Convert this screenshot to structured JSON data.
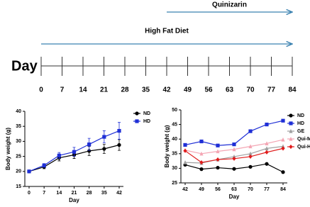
{
  "timeline": {
    "label": "Day",
    "days": [
      0,
      7,
      14,
      21,
      28,
      35,
      42,
      49,
      56,
      63,
      70,
      77,
      84
    ],
    "arrows": [
      {
        "label": "Quinizarin",
        "start": 42,
        "end": 84
      },
      {
        "label": "High Fat Diet",
        "start": 0,
        "end": 84
      }
    ]
  },
  "chart_data": [
    {
      "type": "line",
      "xlabel": "Day",
      "ylabel": "Body weight (g)",
      "x": [
        0,
        7,
        14,
        21,
        28,
        35,
        42
      ],
      "xlim": [
        0,
        42
      ],
      "xticks": [
        0,
        7,
        14,
        21,
        28,
        35,
        42
      ],
      "ylim": [
        15,
        40
      ],
      "yticks": [
        15,
        20,
        25,
        30,
        35,
        40
      ],
      "legend": "upper right",
      "series": [
        {
          "name": "ND",
          "color": "#000000",
          "marker": "circle",
          "values": [
            20,
            21.5,
            24.5,
            25.5,
            26.8,
            27.5,
            28.8
          ],
          "errors": [
            0.3,
            0.6,
            1,
            1.2,
            1.5,
            1.5,
            1.8
          ]
        },
        {
          "name": "HD",
          "color": "#1f2fd6",
          "marker": "square",
          "values": [
            20,
            22,
            25.3,
            26.5,
            29,
            31.5,
            33.5
          ],
          "errors": [
            0.3,
            0.6,
            1,
            1.5,
            2,
            2,
            2.8
          ]
        }
      ]
    },
    {
      "type": "line",
      "xlabel": "Day",
      "ylabel": "Body weight (g)",
      "x": [
        42,
        49,
        56,
        63,
        70,
        77,
        84
      ],
      "xlim": [
        42,
        84
      ],
      "xticks": [
        42,
        49,
        56,
        63,
        70,
        77,
        84
      ],
      "ylim": [
        25,
        50
      ],
      "yticks": [
        25,
        30,
        35,
        40,
        45,
        50
      ],
      "legend": "upper right",
      "series": [
        {
          "name": "ND",
          "color": "#000000",
          "marker": "circle",
          "values": [
            31.2,
            29.7,
            30.2,
            29.8,
            30.5,
            31.5,
            28.7
          ]
        },
        {
          "name": "HD",
          "color": "#1f2fd6",
          "marker": "square",
          "values": [
            38,
            39.2,
            37.8,
            38.2,
            42.7,
            45,
            46.3
          ]
        },
        {
          "name": "GE",
          "color": "#a0a0a0",
          "marker": "triangle",
          "values": [
            32,
            31.8,
            33,
            34,
            35,
            36.8,
            37.5
          ]
        },
        {
          "name": "Qui-M",
          "color": "#f4a6b4",
          "marker": "triangle",
          "values": [
            36.2,
            35,
            35.8,
            36.5,
            37.5,
            38.5,
            39.8
          ]
        },
        {
          "name": "Qui-H",
          "color": "#e01b1b",
          "marker": "diamond",
          "values": [
            36,
            32,
            33,
            33.3,
            34,
            35.5,
            36.8
          ]
        }
      ]
    }
  ]
}
